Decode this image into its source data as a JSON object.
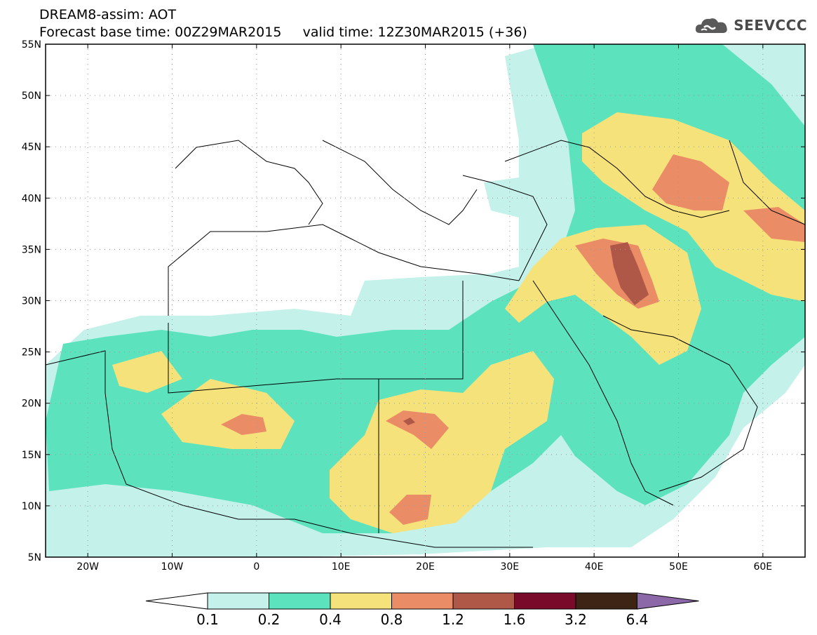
{
  "header": {
    "line1": "DREAM8-assim: AOT",
    "line2": "Forecast base time: 00Z29MAR2015     valid time: 12Z30MAR2015 (+36)",
    "brand": "SEEVCCC",
    "brand_icon": "cloud-logo-icon"
  },
  "map": {
    "lat_range": [
      5,
      55
    ],
    "lon_range": [
      -25,
      65
    ],
    "lat_ticks": [
      {
        "value": 55,
        "label": "55N"
      },
      {
        "value": 50,
        "label": "50N"
      },
      {
        "value": 45,
        "label": "45N"
      },
      {
        "value": 40,
        "label": "40N"
      },
      {
        "value": 35,
        "label": "35N"
      },
      {
        "value": 30,
        "label": "30N"
      },
      {
        "value": 25,
        "label": "25N"
      },
      {
        "value": 20,
        "label": "20N"
      },
      {
        "value": 15,
        "label": "15N"
      },
      {
        "value": 10,
        "label": "10N"
      },
      {
        "value": 5,
        "label": "5N"
      }
    ],
    "lon_ticks": [
      {
        "value": -20,
        "label": "20W"
      },
      {
        "value": -10,
        "label": "10W"
      },
      {
        "value": 0,
        "label": "0"
      },
      {
        "value": 10,
        "label": "10E"
      },
      {
        "value": 20,
        "label": "20E"
      },
      {
        "value": 30,
        "label": "30E"
      },
      {
        "value": 40,
        "label": "40E"
      },
      {
        "value": 50,
        "label": "50E"
      },
      {
        "value": 60,
        "label": "60E"
      }
    ],
    "grid": "dotted"
  },
  "colorbar": {
    "labels": [
      "0.1",
      "0.2",
      "0.4",
      "0.8",
      "1.2",
      "1.6",
      "3.2",
      "6.4"
    ],
    "colors": [
      "#ffffff",
      "#c4f1ea",
      "#5de2be",
      "#f6e27a",
      "#ea8c66",
      "#b05848",
      "#7a0a2a",
      "#3d2415",
      "#8c68a8"
    ]
  }
}
